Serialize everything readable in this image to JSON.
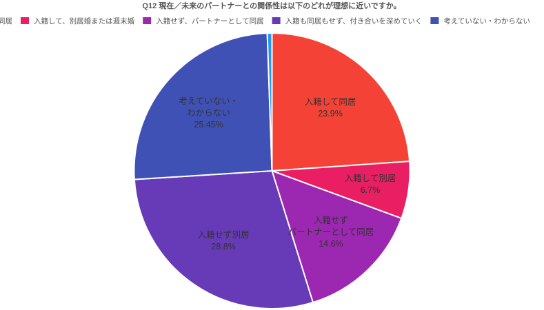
{
  "chart_data": {
    "type": "pie",
    "title": "Q12 現在／未来のパートナーとの関係性は以下のどれが理想に近いですか。",
    "legend": [
      {
        "name": "同居",
        "color": "#f44336"
      },
      {
        "name": "入籍して、別居婚または週末婚",
        "color": "#e91e63"
      },
      {
        "name": "入籍せず、パートナーとして同居",
        "color": "#9c27b0"
      },
      {
        "name": "入籍も同居もせず、付き合いを深めていく",
        "color": "#673ab7"
      },
      {
        "name": "考えていない・わからない",
        "color": "#3f51b5"
      }
    ],
    "categories": [
      [
        "入籍して同居"
      ],
      [
        "入籍して別居"
      ],
      [
        "入籍せず",
        "パートナーとして同居"
      ],
      [
        "入籍せず別居"
      ],
      [
        "考えていない・",
        "わからない"
      ],
      null
    ],
    "values": [
      23.9,
      6.7,
      14.6,
      28.8,
      25.45,
      0.55
    ],
    "value_labels": [
      "23.9%",
      "6.7%",
      "14.6%",
      "28.8%",
      "25.45%",
      null
    ],
    "colors": [
      "#f44336",
      "#e91e63",
      "#9c27b0",
      "#673ab7",
      "#3f51b5",
      "#2196f3"
    ]
  }
}
